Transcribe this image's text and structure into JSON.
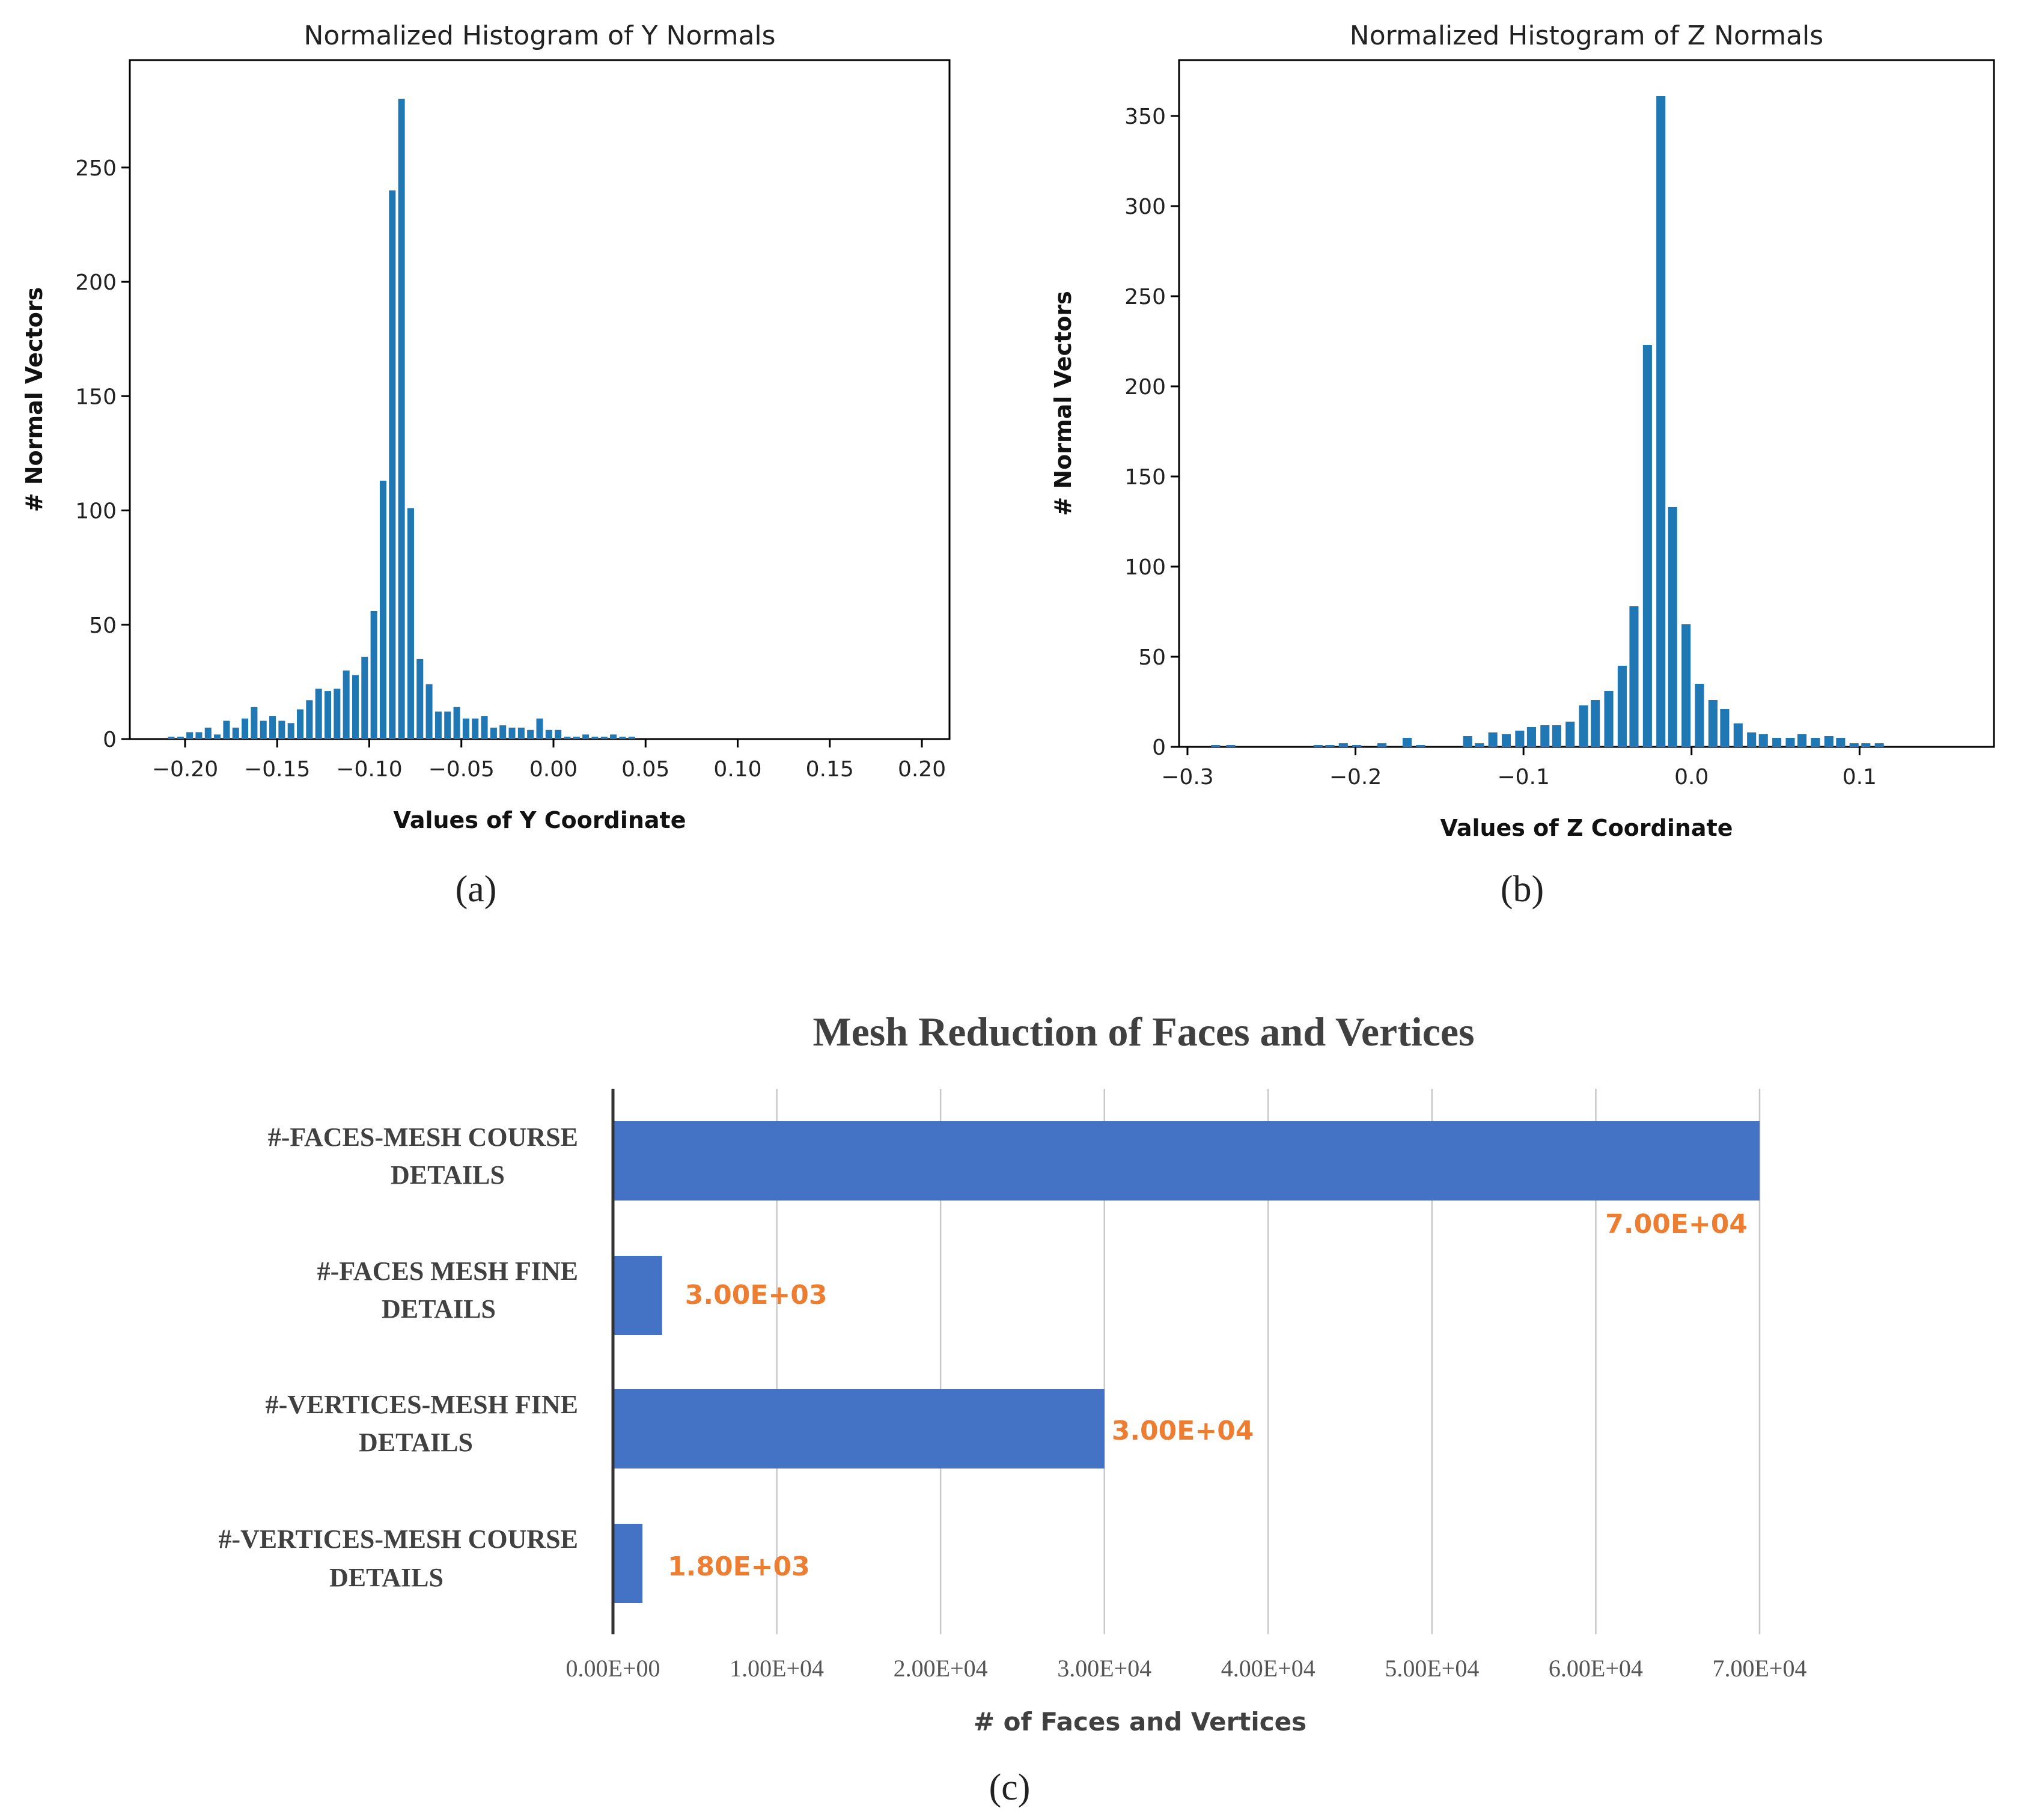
{
  "colors": {
    "hist_bar": "#1f77b4",
    "hbar": "#4472c4",
    "data_label": "#ed7d31",
    "text": "#222222",
    "gray_text": "#404040"
  },
  "panels": {
    "a": {
      "label": "(a)"
    },
    "b": {
      "label": "(b)"
    },
    "c": {
      "label": "(c)"
    }
  },
  "chart_data": [
    {
      "type": "bar",
      "title": "Normalized Histogram of Y Normals",
      "xlabel": "Values of Y Coordinate",
      "ylabel": "# Normal Vectors",
      "xlim": [
        -0.23,
        0.215
      ],
      "ylim": [
        0,
        297
      ],
      "xticks": [
        -0.2,
        -0.15,
        -0.1,
        -0.05,
        0.0,
        0.05,
        0.1,
        0.15,
        0.2
      ],
      "xtick_labels": [
        "−0.20",
        "−0.15",
        "−0.10",
        "−0.05",
        "0.00",
        "0.05",
        "0.10",
        "0.15",
        "0.20"
      ],
      "yticks": [
        0,
        50,
        100,
        150,
        200,
        250
      ],
      "ytick_labels": [
        "0",
        "50",
        "100",
        "150",
        "200",
        "250"
      ],
      "bin_width": 0.005,
      "bins": [
        [
          -0.21,
          1
        ],
        [
          -0.205,
          1
        ],
        [
          -0.2,
          3
        ],
        [
          -0.195,
          3
        ],
        [
          -0.19,
          5
        ],
        [
          -0.185,
          2
        ],
        [
          -0.18,
          8
        ],
        [
          -0.175,
          5
        ],
        [
          -0.17,
          9
        ],
        [
          -0.165,
          14
        ],
        [
          -0.16,
          8
        ],
        [
          -0.155,
          10
        ],
        [
          -0.15,
          8
        ],
        [
          -0.145,
          7
        ],
        [
          -0.14,
          13
        ],
        [
          -0.135,
          17
        ],
        [
          -0.13,
          22
        ],
        [
          -0.125,
          21
        ],
        [
          -0.12,
          22
        ],
        [
          -0.115,
          30
        ],
        [
          -0.11,
          28
        ],
        [
          -0.105,
          36
        ],
        [
          -0.1,
          56
        ],
        [
          -0.095,
          113
        ],
        [
          -0.09,
          240
        ],
        [
          -0.085,
          280
        ],
        [
          -0.08,
          101
        ],
        [
          -0.075,
          35
        ],
        [
          -0.07,
          24
        ],
        [
          -0.065,
          12
        ],
        [
          -0.06,
          12
        ],
        [
          -0.055,
          14
        ],
        [
          -0.05,
          9
        ],
        [
          -0.045,
          9
        ],
        [
          -0.04,
          10
        ],
        [
          -0.035,
          5
        ],
        [
          -0.03,
          6
        ],
        [
          -0.025,
          5
        ],
        [
          -0.02,
          5
        ],
        [
          -0.015,
          4
        ],
        [
          -0.01,
          9
        ],
        [
          -0.005,
          4
        ],
        [
          0.0,
          4
        ],
        [
          0.005,
          1
        ],
        [
          0.01,
          1
        ],
        [
          0.015,
          2
        ],
        [
          0.02,
          1
        ],
        [
          0.025,
          1
        ],
        [
          0.03,
          2
        ],
        [
          0.035,
          1
        ],
        [
          0.04,
          1
        ]
      ]
    },
    {
      "type": "bar",
      "title": "Normalized Histogram of Z Normals",
      "xlabel": "Values of Z Coordinate",
      "ylabel": "# Normal Vectors",
      "xlim": [
        -0.305,
        0.18
      ],
      "ylim": [
        0,
        381
      ],
      "xticks": [
        -0.3,
        -0.2,
        -0.1,
        0.0,
        0.1
      ],
      "xtick_labels": [
        "−0.3",
        "−0.2",
        "−0.1",
        "0.0",
        "0.1"
      ],
      "yticks": [
        0,
        50,
        100,
        150,
        200,
        250,
        300,
        350
      ],
      "ytick_labels": [
        "0",
        "50",
        "100",
        "150",
        "200",
        "250",
        "300",
        "350"
      ],
      "bin_width": 0.0075,
      "bins": [
        [
          -0.287,
          1
        ],
        [
          -0.278,
          1
        ],
        [
          -0.226,
          1
        ],
        [
          -0.219,
          1
        ],
        [
          -0.211,
          2
        ],
        [
          -0.203,
          1
        ],
        [
          -0.188,
          2
        ],
        [
          -0.173,
          5
        ],
        [
          -0.165,
          1
        ],
        [
          -0.137,
          6
        ],
        [
          -0.13,
          2
        ],
        [
          -0.122,
          8
        ],
        [
          -0.114,
          7
        ],
        [
          -0.106,
          9
        ],
        [
          -0.099,
          11
        ],
        [
          -0.091,
          12
        ],
        [
          -0.084,
          12
        ],
        [
          -0.076,
          14
        ],
        [
          -0.068,
          23
        ],
        [
          -0.061,
          26
        ],
        [
          -0.053,
          31
        ],
        [
          -0.045,
          45
        ],
        [
          -0.038,
          78
        ],
        [
          -0.03,
          223
        ],
        [
          -0.022,
          361
        ],
        [
          -0.015,
          133
        ],
        [
          -0.007,
          68
        ],
        [
          0.001,
          35
        ],
        [
          0.009,
          26
        ],
        [
          0.016,
          21
        ],
        [
          0.024,
          13
        ],
        [
          0.032,
          8
        ],
        [
          0.039,
          7
        ],
        [
          0.047,
          5
        ],
        [
          0.055,
          5
        ],
        [
          0.062,
          7
        ],
        [
          0.07,
          5
        ],
        [
          0.078,
          6
        ],
        [
          0.085,
          5
        ],
        [
          0.093,
          2
        ],
        [
          0.1,
          2
        ],
        [
          0.108,
          2
        ]
      ]
    },
    {
      "type": "bar",
      "orientation": "horizontal",
      "title": "Mesh Reduction of Faces and Vertices",
      "xlabel": "# of Faces and Vertices",
      "xlim": [
        0,
        70000
      ],
      "xticks": [
        0,
        10000,
        20000,
        30000,
        40000,
        50000,
        60000,
        70000
      ],
      "xtick_labels": [
        "0.00E+00",
        "1.00E+04",
        "2.00E+04",
        "3.00E+04",
        "4.00E+04",
        "5.00E+04",
        "6.00E+04",
        "7.00E+04"
      ],
      "grid": "vertical",
      "categories": [
        [
          "#-FACES-MESH COURSE",
          "DETAILS"
        ],
        [
          "#-FACES MESH FINE",
          "DETAILS"
        ],
        [
          "#-VERTICES-MESH FINE",
          "DETAILS"
        ],
        [
          "#-VERTICES-MESH COURSE",
          "DETAILS"
        ]
      ],
      "values": [
        70000,
        3000,
        30000,
        1800
      ],
      "data_labels": [
        "7.00E+04",
        "3.00E+03",
        "3.00E+04",
        "1.80E+03"
      ]
    }
  ]
}
